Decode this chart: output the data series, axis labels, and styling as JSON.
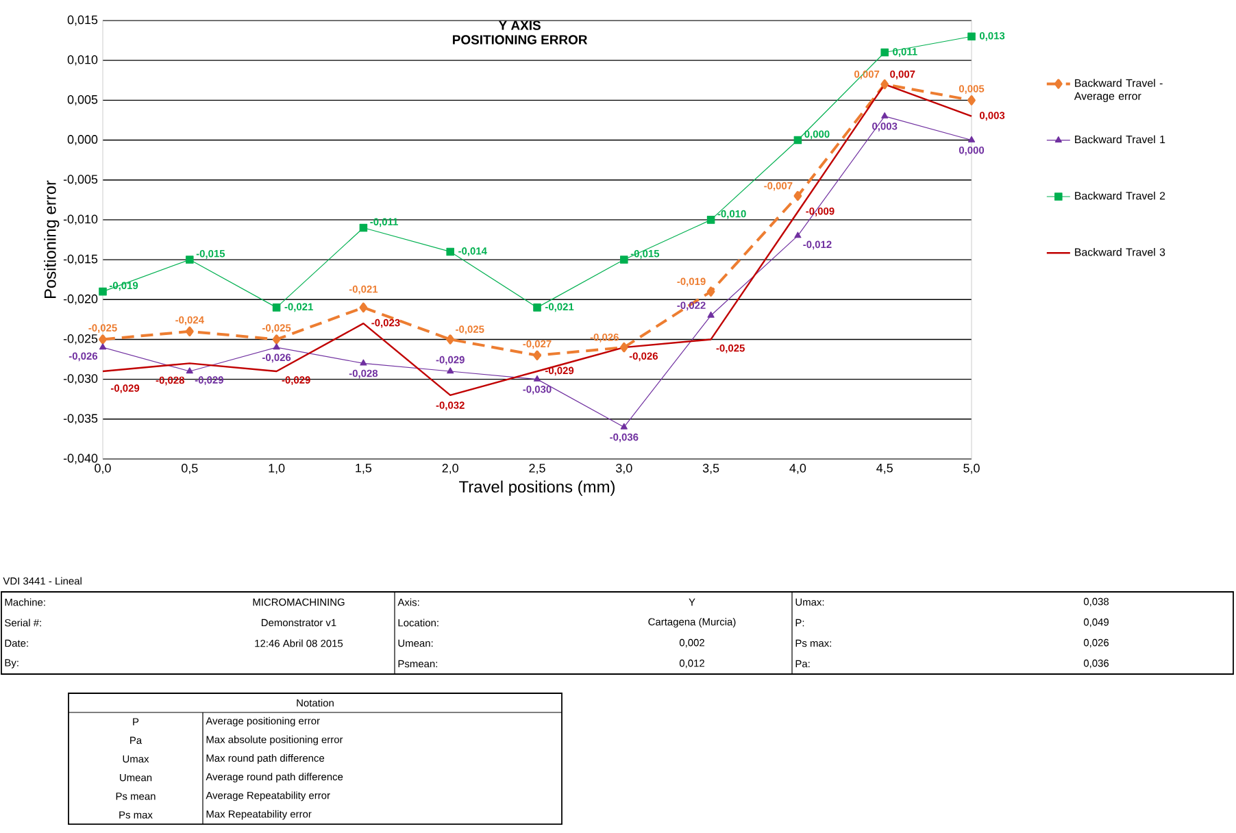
{
  "chart_data": {
    "type": "line",
    "title": "Y AXIS",
    "subtitle": "POSITIONING ERROR",
    "xlabel": "Travel positions (mm)",
    "ylabel": "Positioning error",
    "x": [
      0,
      0.5,
      1,
      1.5,
      2,
      2.5,
      3,
      3.5,
      4,
      4.5,
      5
    ],
    "xlim": [
      0,
      5
    ],
    "xticks": [
      {
        "value": 0,
        "label": "0,0"
      },
      {
        "value": 0.5,
        "label": "0,5"
      },
      {
        "value": 1,
        "label": "1,0"
      },
      {
        "value": 1.5,
        "label": "1,5"
      },
      {
        "value": 2,
        "label": "2,0"
      },
      {
        "value": 2.5,
        "label": "2,5"
      },
      {
        "value": 3,
        "label": "3,0"
      },
      {
        "value": 3.5,
        "label": "3,5"
      },
      {
        "value": 4,
        "label": "4,0"
      },
      {
        "value": 4.5,
        "label": "4,5"
      },
      {
        "value": 5,
        "label": "5,0"
      }
    ],
    "ylim": [
      -0.04,
      0.015
    ],
    "yticks": [
      {
        "value": 0.015,
        "label": "0,015"
      },
      {
        "value": 0.01,
        "label": "0,010"
      },
      {
        "value": 0.005,
        "label": "0,005"
      },
      {
        "value": 0,
        "label": "0,000"
      },
      {
        "value": -0.005,
        "label": "-0,005"
      },
      {
        "value": -0.01,
        "label": "-0,010"
      },
      {
        "value": -0.015,
        "label": "-0,015"
      },
      {
        "value": -0.02,
        "label": "-0,020"
      },
      {
        "value": -0.025,
        "label": "-0,025"
      },
      {
        "value": -0.03,
        "label": "-0,030"
      },
      {
        "value": -0.035,
        "label": "-0,035"
      },
      {
        "value": -0.04,
        "label": "-0,040"
      }
    ],
    "grid": "y",
    "legend": "right",
    "series": [
      {
        "name": "Backward Travel - Average error",
        "color": "#ed7d31",
        "marker": "diamond",
        "line_style": "dashed",
        "values": [
          -0.025,
          -0.024,
          -0.025,
          -0.021,
          -0.025,
          -0.027,
          -0.026,
          -0.019,
          -0.007,
          0.007,
          0.005
        ],
        "value_labels": [
          "-0,025",
          "-0,024",
          "-0,025",
          "-0,021",
          "-0,025",
          "-0,027",
          "-0,026",
          "-0,019",
          "-0,007",
          "0,007",
          "0,005"
        ]
      },
      {
        "name": "Backward Travel 1",
        "color": "#7030a0",
        "marker": "triangle",
        "line_style": "solid",
        "values": [
          -0.026,
          -0.029,
          -0.026,
          -0.028,
          -0.029,
          -0.03,
          -0.036,
          -0.022,
          -0.012,
          0.003,
          0.0
        ],
        "value_labels": [
          "-0,026",
          "-0,029",
          "-0,026",
          "-0,028",
          "-0,029",
          "-0,030",
          "-0,036",
          "-0,022",
          "-0,012",
          "0,003",
          "0,000"
        ]
      },
      {
        "name": "Backward Travel 2",
        "color": "#00b050",
        "marker": "square",
        "line_style": "solid",
        "values": [
          -0.019,
          -0.015,
          -0.021,
          -0.011,
          -0.014,
          -0.021,
          -0.015,
          -0.01,
          0.0,
          0.011,
          0.013
        ],
        "value_labels": [
          "-0,019",
          "-0,015",
          "-0,021",
          "-0,011",
          "-0,014",
          "-0,021",
          "-0,015",
          "-0,010",
          "0,000",
          "0,011",
          "0,013"
        ]
      },
      {
        "name": "Backward Travel 3",
        "color": "#c00000",
        "marker": "none",
        "line_style": "solid",
        "values": [
          -0.029,
          -0.028,
          -0.029,
          -0.023,
          -0.032,
          -0.029,
          -0.026,
          -0.025,
          -0.009,
          0.007,
          0.003
        ],
        "value_labels": [
          "-0,029",
          "-0,028",
          "-0,029",
          "-0,023",
          "-0,032",
          "-0,029",
          "-0,026",
          "-0,025",
          "-0,009",
          "0,007",
          "0,003"
        ]
      }
    ],
    "annotations": [
      "VDI 3441 - Lineal",
      "Machine:",
      "MICROMACHINING",
      "Axis:",
      "Y",
      "Umax:",
      "0,038",
      "Serial #:",
      "Demonstrator v1",
      "Location:",
      "Cartagena (Murcia)",
      "P:",
      "0,049",
      "Date:",
      "12:46 Abril 08 2015",
      "Umean:",
      "0,002",
      "Ps max:",
      "0,026",
      "By:",
      "Psmean:",
      "0,012",
      "Pa:",
      "0,036",
      "Notation",
      "P",
      "Average positioning error",
      "Pa",
      "Max absolute positioning error",
      "Umax",
      "Max round path difference",
      "Umean",
      "Average round path difference",
      "Ps mean",
      "Average Repeatability error",
      "Ps max",
      "Max Repeatability error"
    ]
  }
}
